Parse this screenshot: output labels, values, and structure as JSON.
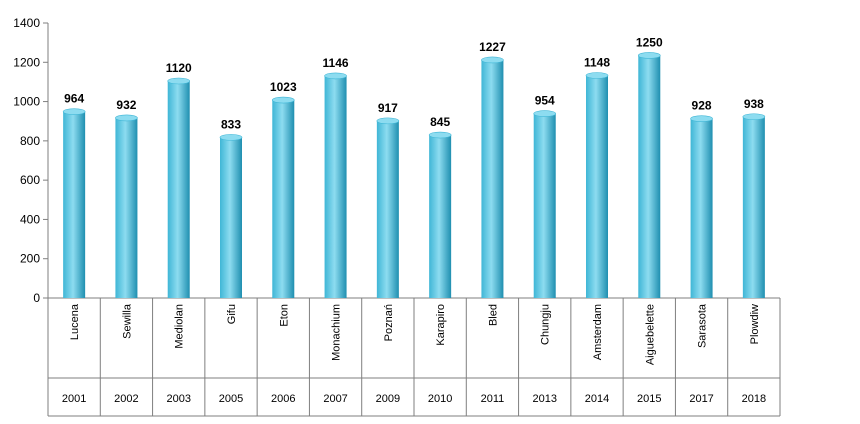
{
  "chart_data": {
    "type": "bar",
    "categories": [
      "Lucena",
      "Sewilla",
      "Mediolan",
      "Gifu",
      "Eton",
      "Monachium",
      "Poznań",
      "Karapiro",
      "Bled",
      "Chungju",
      "Amsterdam",
      "Aiguebelette",
      "Sarasota",
      "Plowdiw"
    ],
    "years": [
      "2001",
      "2002",
      "2003",
      "2005",
      "2006",
      "2007",
      "2009",
      "2010",
      "2011",
      "2013",
      "2014",
      "2015",
      "2017",
      "2018"
    ],
    "values": [
      964,
      932,
      1120,
      833,
      1023,
      1146,
      917,
      845,
      1227,
      954,
      1148,
      1250,
      928,
      938
    ],
    "ylim": [
      0,
      1400
    ],
    "yticks": [
      0,
      200,
      400,
      600,
      800,
      1000,
      1200,
      1400
    ],
    "grid": false,
    "legend": "none",
    "colors": {
      "bar_light": "#8ddcf0",
      "bar_mid": "#3fb6d6",
      "bar_dark": "#1f8fb0",
      "axis": "#7f7f7f"
    }
  }
}
